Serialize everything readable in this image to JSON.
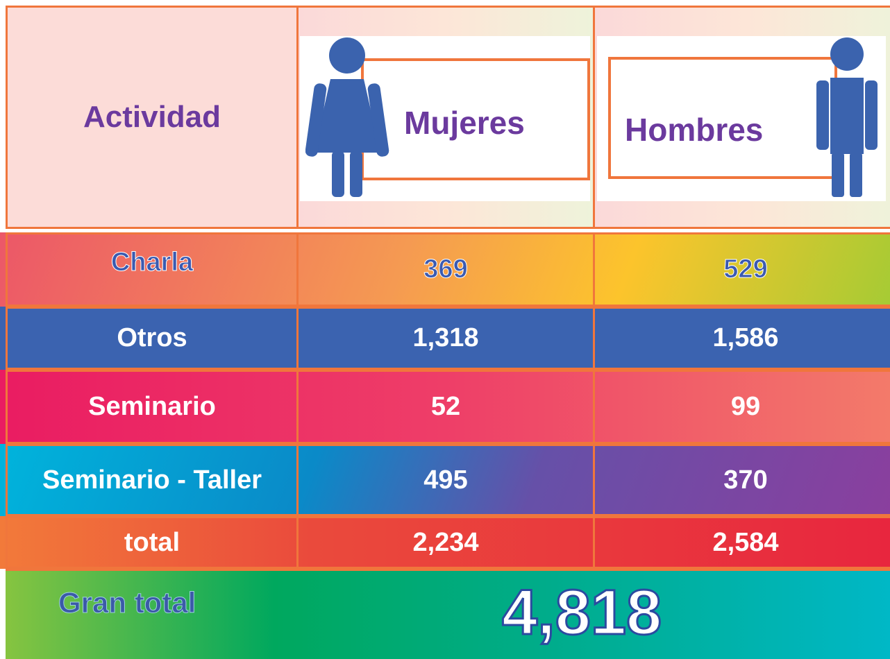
{
  "header": {
    "activity": "Actividad",
    "women": "Mujeres",
    "men": "Hombres"
  },
  "table": {
    "rows": [
      [
        "Charla",
        "369",
        "529"
      ],
      [
        "Otros",
        "1,318",
        "1,586"
      ],
      [
        "Seminario",
        "52",
        "99"
      ],
      [
        "Seminario - Taller",
        "495",
        "370"
      ],
      [
        "total",
        "2,234",
        "2,584"
      ]
    ]
  },
  "grand_total": {
    "label": "Gran total",
    "value": "4,818"
  }
}
